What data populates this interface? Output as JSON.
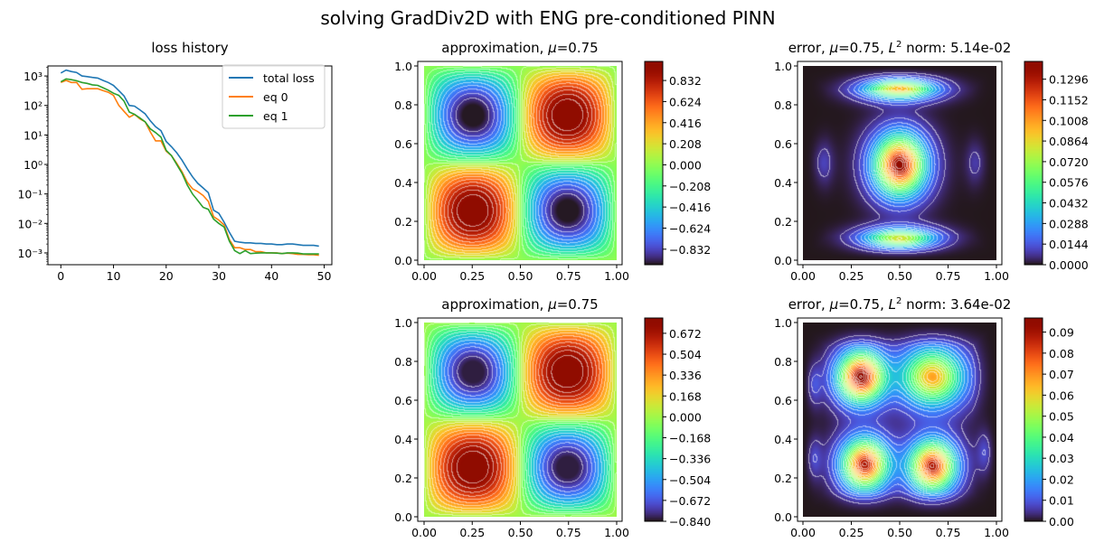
{
  "suptitle": "solving GradDiv2D with ENG pre-conditioned PINN",
  "chart_data": [
    {
      "type": "line",
      "title": "loss history",
      "xlim": [
        -2.45,
        51.45
      ],
      "ylim_log10": [
        -3.4,
        3.34
      ],
      "yscale": "log",
      "xticks": [
        0,
        10,
        20,
        30,
        40,
        50
      ],
      "xtick_labels": [
        "0",
        "10",
        "20",
        "30",
        "40",
        "50"
      ],
      "yticks_log10": [
        -3,
        -2,
        -1,
        0,
        1,
        2,
        3
      ],
      "ytick_labels": [
        "10⁻³",
        "10⁻²",
        "10⁻¹",
        "10⁰",
        "10¹",
        "10²",
        "10³"
      ],
      "legend_position": "top-right",
      "grid": false,
      "x": [
        0,
        1,
        2,
        3,
        4,
        5,
        6,
        7,
        8,
        9,
        10,
        11,
        12,
        13,
        14,
        15,
        16,
        17,
        18,
        19,
        20,
        21,
        22,
        23,
        24,
        25,
        26,
        27,
        28,
        29,
        30,
        31,
        32,
        33,
        34,
        35,
        36,
        37,
        38,
        39,
        40,
        41,
        42,
        43,
        44,
        45,
        46,
        47,
        48,
        49
      ],
      "series": [
        {
          "name": "total loss",
          "color": "#1f77b4",
          "values": [
            1260,
            1580,
            1410,
            1320,
            1000,
            955,
            890,
            850,
            710,
            600,
            480,
            320,
            210,
            100,
            95,
            71,
            52,
            30,
            19,
            14,
            6.0,
            4.0,
            2.5,
            1.4,
            0.71,
            0.38,
            0.23,
            0.16,
            0.11,
            0.028,
            0.022,
            0.011,
            0.005,
            0.0025,
            0.0023,
            0.0022,
            0.0022,
            0.0021,
            0.0021,
            0.002,
            0.002,
            0.0019,
            0.0019,
            0.002,
            0.002,
            0.0019,
            0.0018,
            0.0018,
            0.0018,
            0.0017
          ]
        },
        {
          "name": "eq 0",
          "color": "#ff7f0e",
          "values": [
            600,
            710,
            600,
            600,
            355,
            370,
            370,
            370,
            320,
            280,
            220,
            100,
            63,
            40,
            50,
            35,
            28,
            12.6,
            6.3,
            6.3,
            2.8,
            2.0,
            1.1,
            0.56,
            0.25,
            0.15,
            0.12,
            0.089,
            0.056,
            0.017,
            0.013,
            0.0089,
            0.0028,
            0.0015,
            0.0015,
            0.0013,
            0.0013,
            0.0011,
            0.0011,
            0.001,
            0.001,
            0.001,
            0.00095,
            0.00098,
            0.00095,
            0.00089,
            0.00089,
            0.00087,
            0.00087,
            0.00083
          ]
        },
        {
          "name": "eq 1",
          "color": "#2ca02c",
          "values": [
            630,
            800,
            750,
            690,
            600,
            560,
            500,
            480,
            400,
            330,
            260,
            220,
            140,
            60,
            50,
            38,
            28,
            16,
            12,
            8.5,
            3.0,
            2.0,
            1.0,
            0.5,
            0.2,
            0.1,
            0.06,
            0.035,
            0.03,
            0.014,
            0.01,
            0.0075,
            0.0025,
            0.0012,
            0.00095,
            0.0012,
            0.00095,
            0.00098,
            0.001,
            0.001,
            0.001,
            0.00098,
            0.00095,
            0.001,
            0.001,
            0.00098,
            0.00092,
            0.00092,
            0.00092,
            0.00092
          ]
        }
      ]
    },
    {
      "type": "heatmap",
      "title_parts": {
        "pre": "approximation, ",
        "mu": "μ",
        "post": "=0.75"
      },
      "colormap": "turbo",
      "xlim": [
        0,
        1
      ],
      "ylim": [
        0,
        1
      ],
      "xtick_labels": [
        "0.00",
        "0.25",
        "0.50",
        "0.75",
        "1.00"
      ],
      "ytick_labels": [
        "0.0",
        "0.2",
        "0.4",
        "0.6",
        "0.8",
        "1.0"
      ],
      "color_range": [
        -0.985,
        1.02
      ],
      "colorbar_ticks": [
        0.832,
        0.624,
        0.416,
        0.208,
        0.0,
        -0.208,
        -0.416,
        -0.624,
        -0.832
      ],
      "colorbar_labels": [
        "0.832",
        "0.624",
        "0.416",
        "0.208",
        "0.000",
        "−0.208",
        "−0.416",
        "−0.624",
        "−0.832"
      ],
      "extrema": [
        {
          "x": 0.25,
          "y": 0.75,
          "value": -0.98
        },
        {
          "x": 0.75,
          "y": 0.75,
          "value": 1.0
        },
        {
          "x": 0.25,
          "y": 0.25,
          "value": 1.0
        },
        {
          "x": 0.75,
          "y": 0.25,
          "value": -0.98
        }
      ]
    },
    {
      "type": "heatmap",
      "title_parts": {
        "pre": "error, ",
        "mu": "μ",
        "mid": "=0.75, ",
        "L": "L",
        "sup": "2",
        "post": " norm: 5.14e-02"
      },
      "colormap": "turbo",
      "xlim": [
        0,
        1
      ],
      "ylim": [
        0,
        1
      ],
      "xtick_labels": [
        "0.00",
        "0.25",
        "0.50",
        "0.75",
        "1.00"
      ],
      "ytick_labels": [
        "0.0",
        "0.2",
        "0.4",
        "0.6",
        "0.8",
        "1.0"
      ],
      "color_range": [
        0,
        0.142
      ],
      "colorbar_ticks": [
        0.1296,
        0.1152,
        0.1008,
        0.0864,
        0.072,
        0.0576,
        0.0432,
        0.0288,
        0.0144,
        0.0
      ],
      "colorbar_labels": [
        "0.1296",
        "0.1152",
        "0.1008",
        "0.0864",
        "0.0720",
        "0.0576",
        "0.0432",
        "0.0288",
        "0.0144",
        "0.0000"
      ],
      "extrema": [
        {
          "x": 0.5,
          "y": 0.89,
          "value": 0.105
        },
        {
          "x": 0.5,
          "y": 0.49,
          "value": 0.142
        },
        {
          "x": 0.5,
          "y": 0.1,
          "value": 0.1
        },
        {
          "x": 0.1,
          "y": 0.5,
          "value": 0.012
        },
        {
          "x": 0.9,
          "y": 0.5,
          "value": 0.01
        }
      ]
    },
    {
      "type": "heatmap",
      "title_parts": {
        "pre": "approximation, ",
        "mu": "μ",
        "post": "=0.75"
      },
      "colormap": "turbo",
      "xlim": [
        0,
        1
      ],
      "ylim": [
        0,
        1
      ],
      "xtick_labels": [
        "0.00",
        "0.25",
        "0.50",
        "0.75",
        "1.00"
      ],
      "ytick_labels": [
        "0.0",
        "0.2",
        "0.4",
        "0.6",
        "0.8",
        "1.0"
      ],
      "color_range": [
        -0.84,
        0.795
      ],
      "colorbar_ticks": [
        0.672,
        0.504,
        0.336,
        0.168,
        0.0,
        -0.168,
        -0.336,
        -0.504,
        -0.672,
        -0.84
      ],
      "colorbar_labels": [
        "0.672",
        "0.504",
        "0.336",
        "0.168",
        "0.000",
        "−0.168",
        "−0.336",
        "−0.504",
        "−0.672",
        "−0.840"
      ],
      "extrema": [
        {
          "x": 0.25,
          "y": 0.75,
          "value": -0.82
        },
        {
          "x": 0.75,
          "y": 0.75,
          "value": 0.78
        },
        {
          "x": 0.25,
          "y": 0.25,
          "value": 0.78
        },
        {
          "x": 0.75,
          "y": 0.25,
          "value": -0.82
        }
      ]
    },
    {
      "type": "heatmap",
      "title_parts": {
        "pre": "error, ",
        "mu": "μ",
        "mid": "=0.75, ",
        "L": "L",
        "sup": "2",
        "post": " norm: 3.64e-02"
      },
      "colormap": "turbo",
      "xlim": [
        0,
        1
      ],
      "ylim": [
        0,
        1
      ],
      "xtick_labels": [
        "0.00",
        "0.25",
        "0.50",
        "0.75",
        "1.00"
      ],
      "ytick_labels": [
        "0.0",
        "0.2",
        "0.4",
        "0.6",
        "0.8",
        "1.0"
      ],
      "color_range": [
        0,
        0.0967
      ],
      "colorbar_ticks": [
        0.09,
        0.08,
        0.07,
        0.06,
        0.05,
        0.04,
        0.03,
        0.02,
        0.01,
        0.0
      ],
      "colorbar_labels": [
        "0.09",
        "0.08",
        "0.07",
        "0.06",
        "0.05",
        "0.04",
        "0.03",
        "0.02",
        "0.01",
        "0.00"
      ],
      "extrema": [
        {
          "x": 0.3,
          "y": 0.72,
          "value": 0.0967
        },
        {
          "x": 0.67,
          "y": 0.72,
          "value": 0.068
        },
        {
          "x": 0.32,
          "y": 0.27,
          "value": 0.09
        },
        {
          "x": 0.67,
          "y": 0.26,
          "value": 0.09
        },
        {
          "x": 0.05,
          "y": 0.68,
          "value": 0.02
        },
        {
          "x": 0.05,
          "y": 0.3,
          "value": 0.018
        },
        {
          "x": 0.95,
          "y": 0.33,
          "value": 0.018
        }
      ]
    }
  ]
}
